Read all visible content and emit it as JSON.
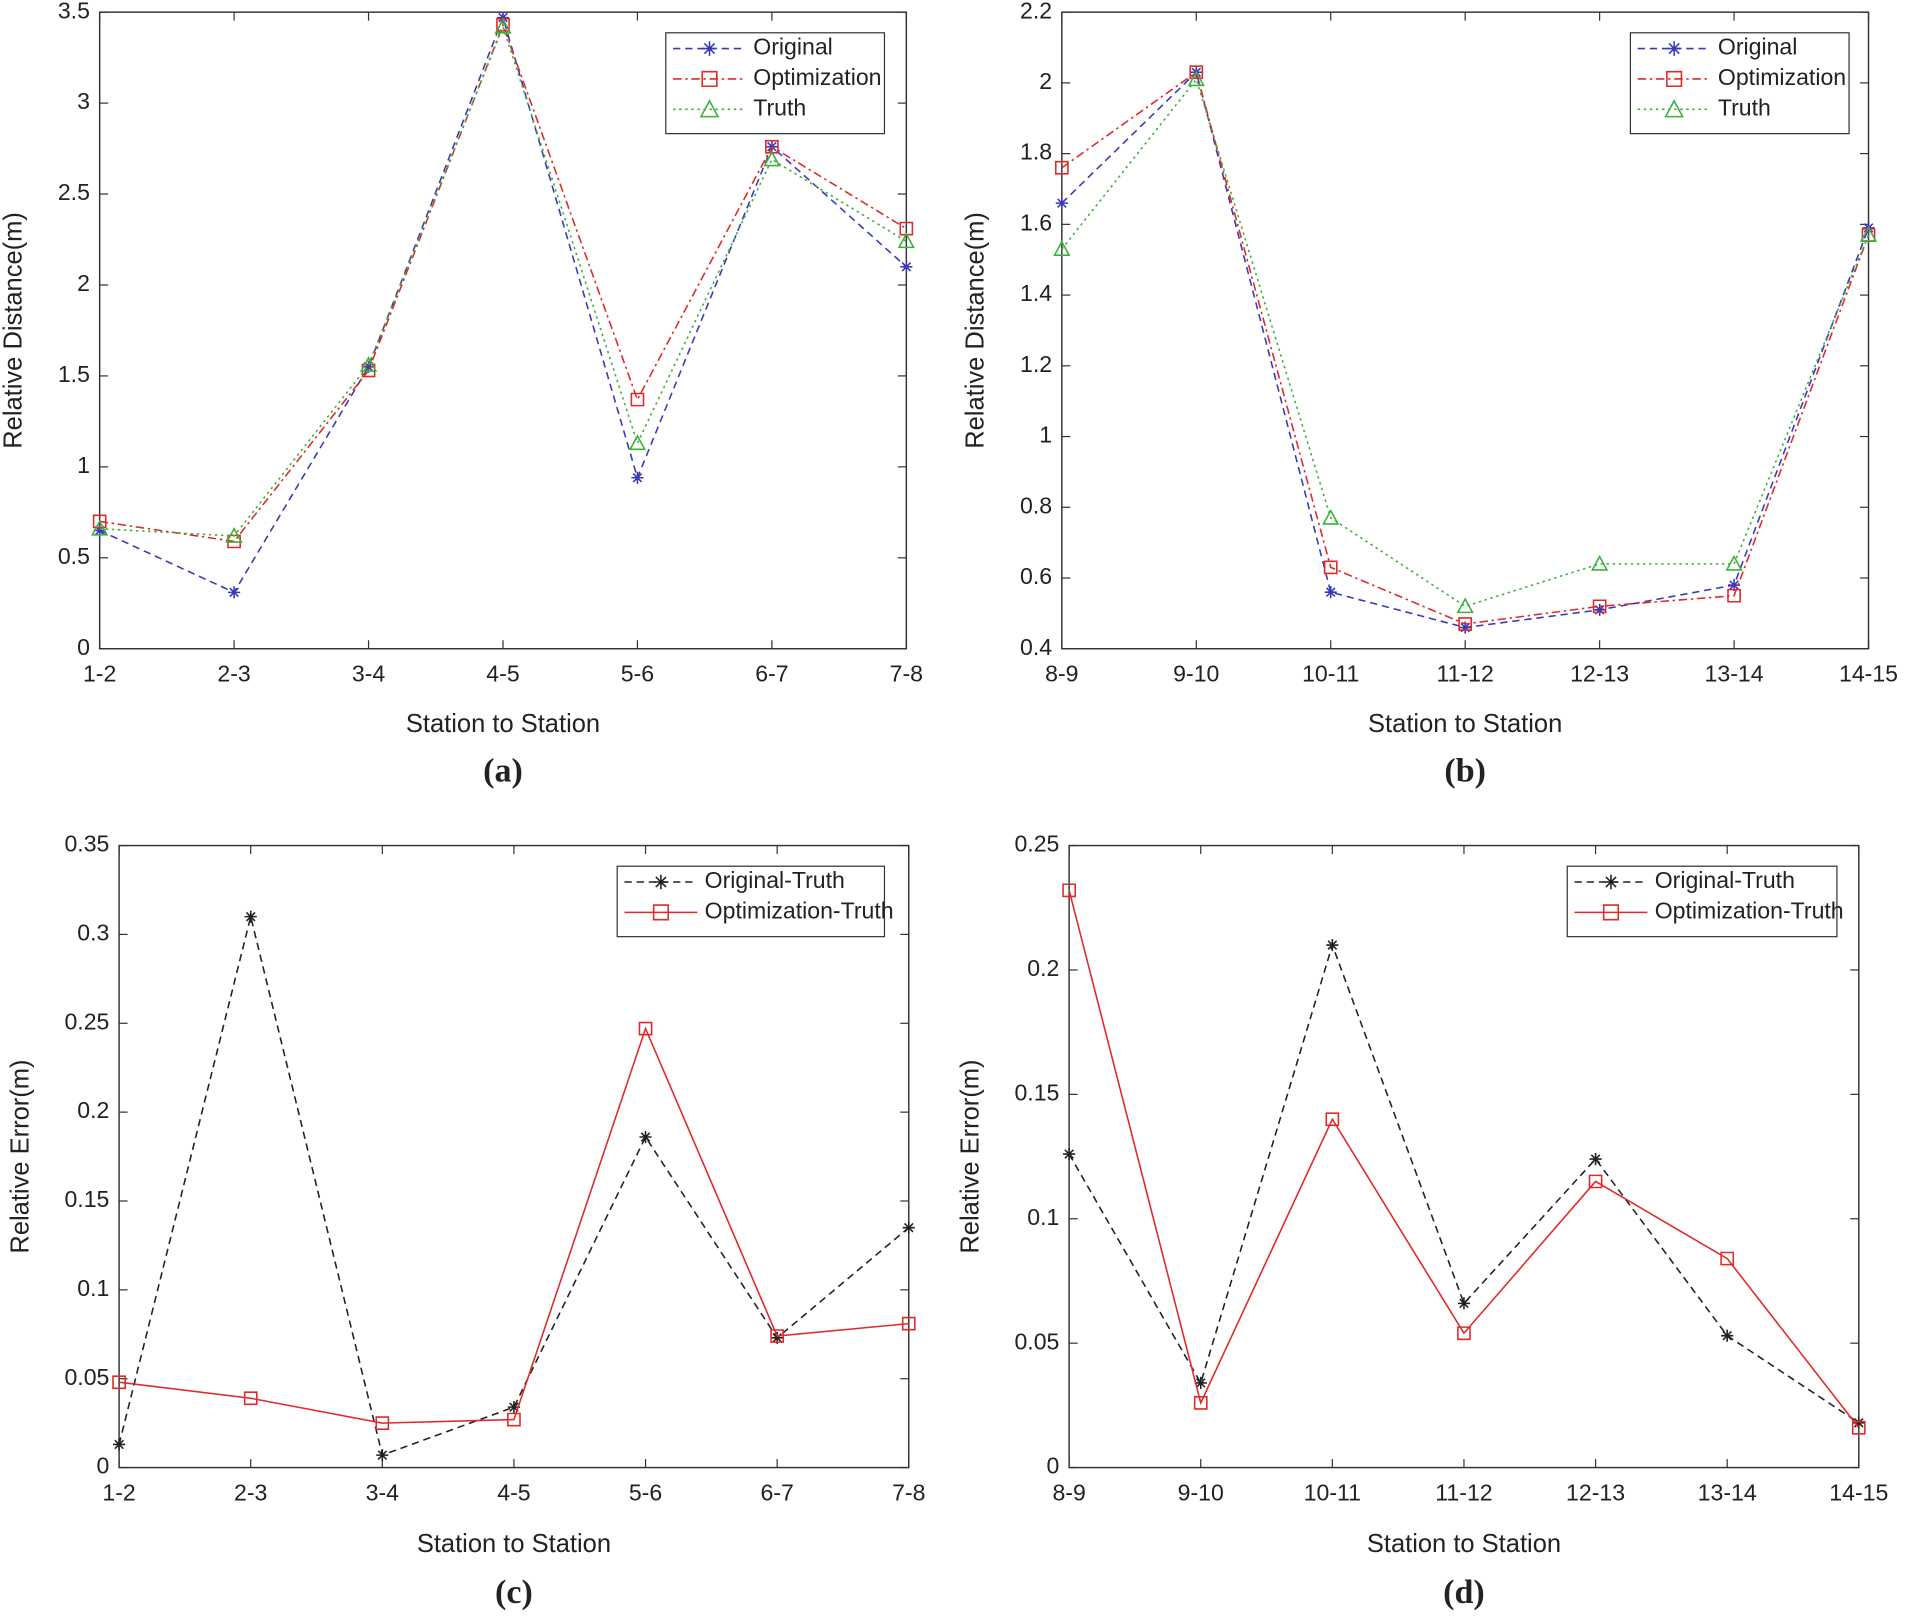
{
  "chart_data": [
    {
      "type": "line",
      "caption": "(a)",
      "xlabel": "Station to Station",
      "ylabel": "Relative Distance(m)",
      "categories": [
        "1-2",
        "2-3",
        "3-4",
        "4-5",
        "5-6",
        "6-7",
        "7-8"
      ],
      "ylim": [
        0,
        3.5
      ],
      "yticks": [
        0,
        0.5,
        1,
        1.5,
        2,
        2.5,
        3,
        3.5
      ],
      "legend": "northeast",
      "series": [
        {
          "name": "Original",
          "color": "#3a3ab8",
          "marker": "star",
          "linestyle": "dashed",
          "values": [
            0.65,
            0.31,
            1.55,
            3.47,
            0.94,
            2.76,
            2.1
          ]
        },
        {
          "name": "Optimization",
          "color": "#e02a2a",
          "marker": "square",
          "linestyle": "dashdot",
          "values": [
            0.7,
            0.59,
            1.53,
            3.43,
            1.37,
            2.76,
            2.31
          ]
        },
        {
          "name": "Truth",
          "color": "#3cb03c",
          "marker": "triangle",
          "linestyle": "dotted",
          "values": [
            0.66,
            0.62,
            1.56,
            3.42,
            1.13,
            2.69,
            2.24
          ]
        }
      ]
    },
    {
      "type": "line",
      "caption": "(b)",
      "xlabel": "Station to Station",
      "ylabel": "Relative Distance(m)",
      "categories": [
        "8-9",
        "9-10",
        "10-11",
        "11-12",
        "12-13",
        "13-14",
        "14-15"
      ],
      "ylim": [
        0.4,
        2.2
      ],
      "yticks": [
        0.4,
        0.6,
        0.8,
        1,
        1.2,
        1.4,
        1.6,
        1.8,
        2,
        2.2
      ],
      "legend": "northeast",
      "series": [
        {
          "name": "Original",
          "color": "#3a3ab8",
          "marker": "star",
          "linestyle": "dashed",
          "values": [
            1.66,
            2.03,
            0.56,
            0.46,
            0.51,
            0.58,
            1.59
          ]
        },
        {
          "name": "Optimization",
          "color": "#e02a2a",
          "marker": "square",
          "linestyle": "dashdot",
          "values": [
            1.76,
            2.03,
            0.63,
            0.47,
            0.52,
            0.55,
            1.57
          ]
        },
        {
          "name": "Truth",
          "color": "#3cb03c",
          "marker": "triangle",
          "linestyle": "dotted",
          "values": [
            1.53,
            2.01,
            0.77,
            0.52,
            0.64,
            0.64,
            1.57
          ]
        }
      ]
    },
    {
      "type": "line",
      "caption": "(c)",
      "xlabel": "Station to Station",
      "ylabel": "Relative Error(m)",
      "categories": [
        "1-2",
        "2-3",
        "3-4",
        "4-5",
        "5-6",
        "6-7",
        "7-8"
      ],
      "ylim": [
        0,
        0.35
      ],
      "yticks": [
        0,
        0.05,
        0.1,
        0.15,
        0.2,
        0.25,
        0.3,
        0.35
      ],
      "legend": "northeast",
      "series": [
        {
          "name": "Original-Truth",
          "color": "#222222",
          "marker": "star",
          "linestyle": "dashed",
          "values": [
            0.013,
            0.31,
            0.007,
            0.034,
            0.186,
            0.073,
            0.135
          ]
        },
        {
          "name": "Optimization-Truth",
          "color": "#e02a2a",
          "marker": "square",
          "linestyle": "solid",
          "values": [
            0.048,
            0.039,
            0.025,
            0.027,
            0.247,
            0.074,
            0.081
          ]
        }
      ]
    },
    {
      "type": "line",
      "caption": "(d)",
      "xlabel": "Station to Station",
      "ylabel": "Relative Error(m)",
      "categories": [
        "8-9",
        "9-10",
        "10-11",
        "11-12",
        "12-13",
        "13-14",
        "14-15"
      ],
      "ylim": [
        0,
        0.25
      ],
      "yticks": [
        0,
        0.05,
        0.1,
        0.15,
        0.2,
        0.25
      ],
      "legend": "northeast",
      "series": [
        {
          "name": "Original-Truth",
          "color": "#222222",
          "marker": "star",
          "linestyle": "dashed",
          "values": [
            0.126,
            0.034,
            0.21,
            0.066,
            0.124,
            0.053,
            0.018
          ]
        },
        {
          "name": "Optimization-Truth",
          "color": "#e02a2a",
          "marker": "square",
          "linestyle": "solid",
          "values": [
            0.232,
            0.026,
            0.14,
            0.054,
            0.115,
            0.084,
            0.016
          ]
        }
      ]
    }
  ]
}
